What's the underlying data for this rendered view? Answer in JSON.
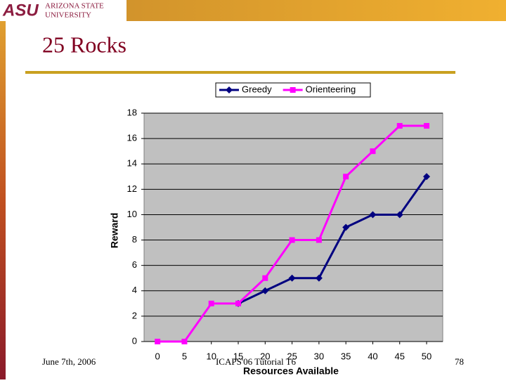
{
  "header": {
    "logo": "ASU",
    "university_line1": "ARIZONA STATE",
    "university_line2": "UNIVERSITY"
  },
  "slide_title": "25 Rocks",
  "footer": {
    "date": "June 7th, 2006",
    "event": "ICAPS'06 Tutorial T6",
    "page": "78"
  },
  "chart_data": {
    "type": "line",
    "xlabel": "Resources Available",
    "ylabel": "Reward",
    "x": [
      0,
      5,
      10,
      15,
      20,
      25,
      30,
      35,
      40,
      45,
      50
    ],
    "series": [
      {
        "name": "Greedy",
        "color": "#000080",
        "marker": "diamond",
        "values": [
          null,
          null,
          null,
          3,
          4,
          5,
          5,
          9,
          10,
          10,
          13
        ]
      },
      {
        "name": "Orienteering",
        "color": "#ff00ff",
        "marker": "square",
        "values": [
          0,
          0,
          3,
          3,
          5,
          8,
          8,
          13,
          15,
          17,
          17
        ]
      }
    ],
    "xlim": [
      -2.5,
      53
    ],
    "xticks": [
      0,
      5,
      10,
      15,
      20,
      25,
      30,
      35,
      40,
      45,
      50
    ],
    "ylim": [
      0,
      18
    ],
    "yticks": [
      0,
      2,
      4,
      6,
      8,
      10,
      12,
      14,
      16,
      18
    ],
    "grid": true,
    "legend": "top",
    "plot_background": "#c0c0c0"
  }
}
